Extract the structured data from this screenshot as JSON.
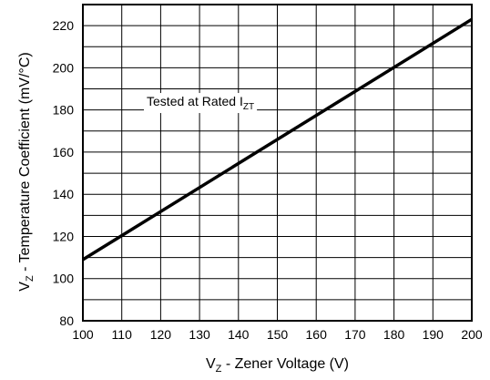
{
  "chart_data": {
    "type": "line",
    "xlabel": {
      "main": "V",
      "sub": "Z",
      "rest": " - Zener Voltage (V)"
    },
    "ylabel": {
      "main": "V",
      "sub": "Z",
      "rest": " - Temperature Coefficient (mV/°C)"
    },
    "xlim": [
      100,
      200
    ],
    "ylim": [
      80,
      230
    ],
    "x_ticks": [
      100,
      110,
      120,
      130,
      140,
      150,
      160,
      170,
      180,
      190,
      200
    ],
    "y_ticks": [
      80,
      100,
      120,
      140,
      160,
      180,
      200,
      220
    ],
    "grid": true,
    "series": [
      {
        "x": [
          100,
          200
        ],
        "y": [
          109,
          223
        ]
      }
    ],
    "annotation": {
      "text": "Tested at Rated I",
      "sub": "ZT"
    }
  }
}
